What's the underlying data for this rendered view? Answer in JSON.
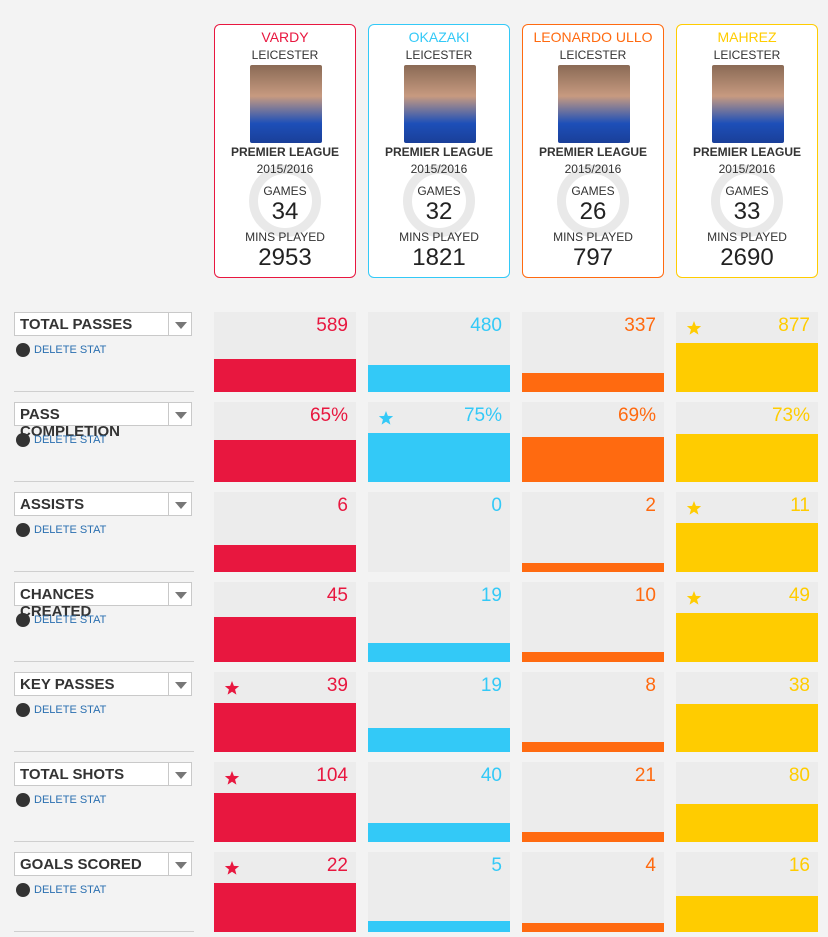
{
  "players": [
    {
      "name": "VARDY",
      "team": "LEICESTER",
      "league": "PREMIER LEAGUE",
      "season": "2015/2016",
      "games_label": "GAMES",
      "games": 34,
      "mins_label": "MINS PLAYED",
      "mins": 2953,
      "color": "#e8173f"
    },
    {
      "name": "OKAZAKI",
      "team": "LEICESTER",
      "league": "PREMIER LEAGUE",
      "season": "2015/2016",
      "games_label": "GAMES",
      "games": 32,
      "mins_label": "MINS PLAYED",
      "mins": 1821,
      "color": "#33c9f7"
    },
    {
      "name": "LEONARDO ULLO",
      "team": "LEICESTER",
      "league": "PREMIER LEAGUE",
      "season": "2015/2016",
      "games_label": "GAMES",
      "games": 26,
      "mins_label": "MINS PLAYED",
      "mins": 797,
      "color": "#ff6a10"
    },
    {
      "name": "MAHREZ",
      "team": "LEICESTER",
      "league": "PREMIER LEAGUE",
      "season": "2015/2016",
      "games_label": "GAMES",
      "games": 33,
      "mins_label": "MINS PLAYED",
      "mins": 2690,
      "color": "#ffcc00"
    }
  ],
  "stats": [
    {
      "name": "TOTAL PASSES",
      "action": "DELETE STAT",
      "values": [
        589,
        480,
        337,
        877
      ]
    },
    {
      "name": "PASS COMPLETION",
      "action": "DELETE STAT",
      "values": [
        65,
        75,
        69,
        73
      ],
      "value_labels": [
        "65%",
        "75%",
        "69%",
        "73%"
      ]
    },
    {
      "name": "ASSISTS",
      "action": "DELETE STAT",
      "values": [
        6,
        0,
        2,
        11
      ]
    },
    {
      "name": "CHANCES CREATED",
      "action": "DELETE STAT",
      "values": [
        45,
        19,
        10,
        49
      ]
    },
    {
      "name": "KEY PASSES",
      "action": "DELETE STAT",
      "values": [
        39,
        19,
        8,
        38
      ]
    },
    {
      "name": "TOTAL SHOTS",
      "action": "DELETE STAT",
      "values": [
        104,
        40,
        21,
        80
      ]
    },
    {
      "name": "GOALS SCORED",
      "action": "DELETE STAT",
      "values": [
        22,
        5,
        4,
        16
      ]
    }
  ]
}
